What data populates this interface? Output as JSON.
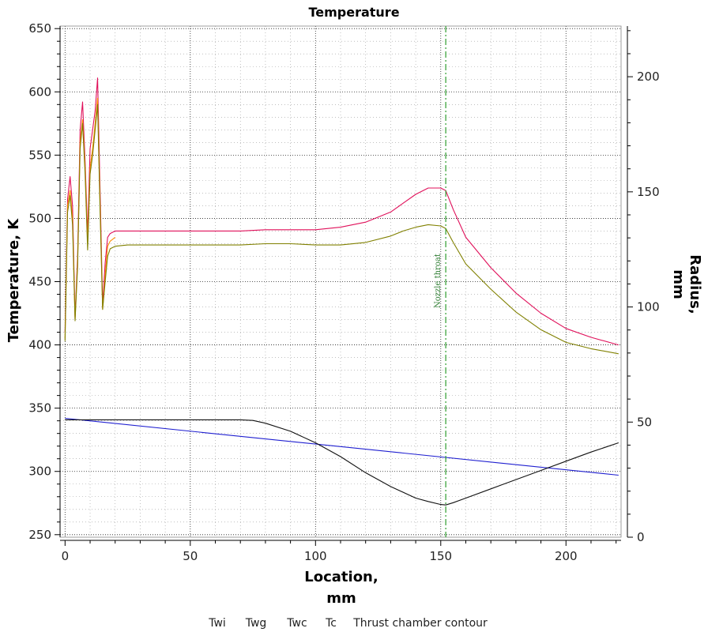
{
  "chart_data": {
    "type": "line",
    "title": "Temperature",
    "xlabel": [
      "Location,",
      "mm"
    ],
    "ylabel": "Temperature, K",
    "y2label": [
      "Radius,",
      "mm"
    ],
    "xlim": [
      -2,
      222
    ],
    "ylim": [
      248,
      652
    ],
    "y2lim": [
      0,
      222
    ],
    "xticks": [
      0,
      50,
      100,
      150,
      200
    ],
    "yticks": [
      250,
      300,
      350,
      400,
      450,
      500,
      550,
      600,
      650
    ],
    "y2ticks": [
      0,
      50,
      100,
      150,
      200
    ],
    "grid": true,
    "legend_position": "bottom",
    "annotation": {
      "text": "Nozzle throat",
      "x": 152
    },
    "series": [
      {
        "name": "Twi",
        "color": "#e0105a",
        "axis": "left",
        "x": [
          0,
          1,
          2,
          3,
          4,
          5,
          6,
          7,
          8,
          9,
          10,
          11,
          12,
          13,
          14,
          15,
          16,
          17,
          18,
          20,
          25,
          30,
          40,
          50,
          60,
          70,
          80,
          90,
          100,
          110,
          120,
          130,
          135,
          140,
          145,
          150,
          152,
          155,
          160,
          170,
          180,
          190,
          200,
          210,
          221
        ],
        "y": [
          410,
          515,
          533,
          510,
          422,
          470,
          570,
          592,
          545,
          487,
          555,
          570,
          585,
          611,
          520,
          432,
          465,
          485,
          488,
          490,
          490,
          490,
          490,
          490,
          490,
          490,
          491,
          491,
          491,
          493,
          497,
          505,
          512,
          519,
          524,
          524,
          522,
          507,
          485,
          461,
          441,
          425,
          413,
          406,
          400
        ]
      },
      {
        "name": "Twg",
        "color": "#ff8c00",
        "axis": "left",
        "x": [
          0,
          1,
          2,
          3,
          4,
          5,
          6,
          7,
          8,
          9,
          10,
          11,
          12,
          13,
          14,
          15,
          16,
          17,
          18,
          20
        ],
        "y": [
          405,
          510,
          522,
          500,
          420,
          465,
          560,
          578,
          540,
          480,
          540,
          555,
          575,
          595,
          510,
          428,
          455,
          478,
          482,
          485
        ]
      },
      {
        "name": "Twc",
        "color": "#808000",
        "axis": "left",
        "x": [
          0,
          1,
          2,
          3,
          4,
          5,
          6,
          7,
          8,
          9,
          10,
          11,
          12,
          13,
          14,
          15,
          16,
          17,
          18,
          20,
          25,
          30,
          40,
          50,
          60,
          70,
          80,
          90,
          100,
          110,
          120,
          130,
          135,
          140,
          145,
          150,
          152,
          155,
          160,
          170,
          180,
          190,
          200,
          210,
          221
        ],
        "y": [
          403,
          505,
          518,
          495,
          419,
          462,
          555,
          575,
          535,
          475,
          535,
          550,
          570,
          590,
          505,
          428,
          450,
          470,
          476,
          478,
          479,
          479,
          479,
          479,
          479,
          479,
          480,
          480,
          479,
          479,
          481,
          486,
          490,
          493,
          495,
          494,
          492,
          481,
          464,
          444,
          426,
          412,
          402,
          397,
          393
        ]
      },
      {
        "name": "Tc",
        "color": "#1f1fd0",
        "axis": "left",
        "x": [
          0,
          221
        ],
        "y": [
          342,
          297
        ]
      },
      {
        "name": "Thrust chamber contour",
        "color": "#111111",
        "axis": "right",
        "x": [
          0,
          20,
          40,
          60,
          70,
          75,
          80,
          90,
          100,
          110,
          120,
          130,
          140,
          145,
          150,
          152,
          155,
          160,
          170,
          180,
          190,
          200,
          210,
          221
        ],
        "y": [
          51,
          51,
          51,
          51,
          51,
          50.7,
          49.5,
          46,
          41,
          35,
          28,
          22,
          17,
          15.5,
          14.2,
          14,
          15,
          17,
          21,
          25,
          29,
          33,
          37,
          41
        ]
      }
    ]
  }
}
